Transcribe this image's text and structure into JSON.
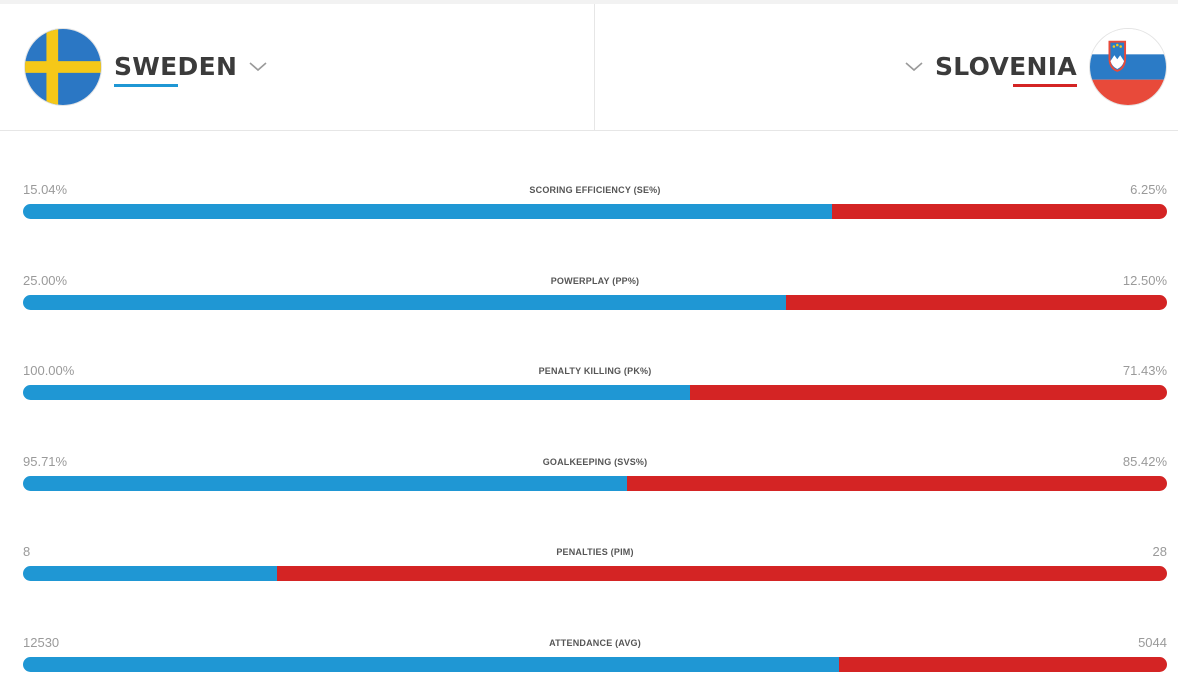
{
  "colors": {
    "home": "#1f97d4",
    "away": "#d42424"
  },
  "home": {
    "name": "SWEDEN",
    "flag_icon": "sweden-flag-icon"
  },
  "away": {
    "name": "SLOVENIA",
    "flag_icon": "slovenia-flag-icon"
  },
  "stats": [
    {
      "label": "SCORING EFFICIENCY (SE%)",
      "home": "15.04%",
      "away": "6.25%",
      "home_share": 0.707
    },
    {
      "label": "POWERPLAY (PP%)",
      "home": "25.00%",
      "away": "12.50%",
      "home_share": 0.667
    },
    {
      "label": "PENALTY KILLING (PK%)",
      "home": "100.00%",
      "away": "71.43%",
      "home_share": 0.583
    },
    {
      "label": "GOALKEEPING (SVS%)",
      "home": "95.71%",
      "away": "85.42%",
      "home_share": 0.528
    },
    {
      "label": "PENALTIES (PIM)",
      "home": "8",
      "away": "28",
      "home_share": 0.222
    },
    {
      "label": "ATTENDANCE (AVG)",
      "home": "12530",
      "away": "5044",
      "home_share": 0.713
    }
  ]
}
